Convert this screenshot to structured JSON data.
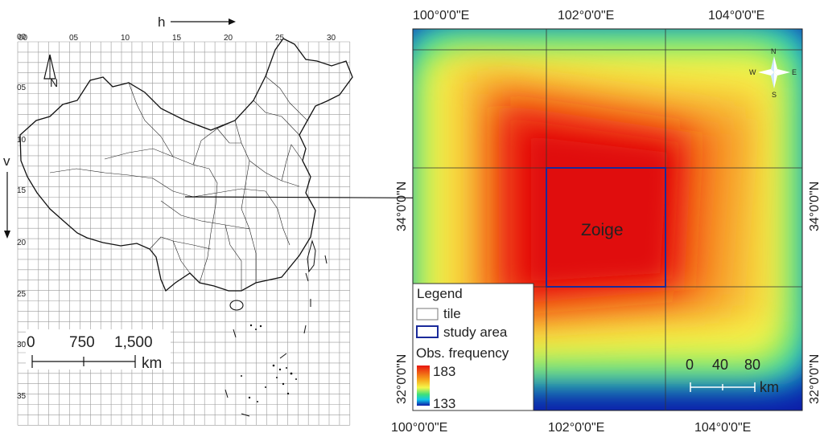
{
  "left_panel": {
    "h_label": "h",
    "v_label": "v",
    "h_ticks": [
      "00",
      "05",
      "10",
      "15",
      "20",
      "25",
      "30"
    ],
    "v_ticks": [
      "00",
      "05",
      "10",
      "15",
      "20",
      "25",
      "30",
      "35"
    ],
    "north_label": "N",
    "scale": {
      "labels": [
        "0",
        "750",
        "1,500"
      ],
      "unit": "km"
    }
  },
  "right_panel": {
    "top_lon_labels": [
      "100°0'0\"E",
      "102°0'0\"E",
      "104°0'0\"E"
    ],
    "bottom_lon_labels": [
      "100°0'0\"E",
      "102°0'0\"E",
      "104°0'0\"E"
    ],
    "left_lat_labels": [
      "34°0'0\"N",
      "32°0'0\"N"
    ],
    "right_lat_labels": [
      "34°0'0\"N",
      "32°0'0\"N"
    ],
    "study_area_label": "Zoige",
    "compass": {
      "n": "N",
      "s": "S",
      "e": "E",
      "w": "W"
    },
    "scale": {
      "labels": [
        "0",
        "40",
        "80"
      ],
      "unit": "km"
    },
    "legend": {
      "title": "Legend",
      "tile_label": "tile",
      "study_area_label": "study area",
      "frequency_title": "Obs. frequency",
      "max": "183",
      "min": "133"
    }
  },
  "colors": {
    "frequency_high": "#e8150f",
    "frequency_mid": "#f5f74a",
    "frequency_low": "#0d1aa8",
    "study_area": "#1a2a9a"
  }
}
